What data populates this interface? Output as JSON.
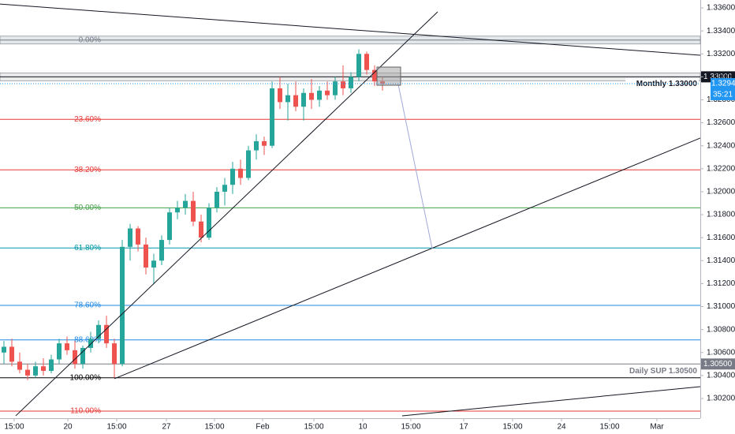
{
  "chart_data": {
    "type": "candlestick",
    "open": [
      1.306,
      1.3065,
      1.3052,
      1.3045,
      1.304,
      1.3048,
      1.3044,
      1.3054,
      1.3068,
      1.3062,
      1.305,
      1.3064,
      1.3072,
      1.3084,
      1.3068,
      1.305,
      1.3152,
      1.3168,
      1.3154,
      1.3134,
      1.314,
      1.3158,
      1.3182,
      1.3186,
      1.3192,
      1.3174,
      1.316,
      1.3186,
      1.32,
      1.3206,
      1.322,
      1.3212,
      1.3236,
      1.3244,
      1.324,
      1.329,
      1.3278,
      1.3284,
      1.3274,
      1.3286,
      1.328,
      1.3288,
      1.3284,
      1.3296,
      1.329,
      1.33,
      1.332,
      1.3306,
      1.3296
    ],
    "high": [
      1.307,
      1.3072,
      1.306,
      1.305,
      1.3052,
      1.3055,
      1.3058,
      1.3072,
      1.3074,
      1.307,
      1.3066,
      1.3078,
      1.3088,
      1.3092,
      1.3072,
      1.3158,
      1.3172,
      1.317,
      1.316,
      1.3146,
      1.3162,
      1.3186,
      1.3192,
      1.3198,
      1.32,
      1.318,
      1.319,
      1.3204,
      1.3212,
      1.3226,
      1.3228,
      1.324,
      1.325,
      1.3248,
      1.3296,
      1.33,
      1.3294,
      1.3296,
      1.329,
      1.3298,
      1.3292,
      1.3296,
      1.33,
      1.331,
      1.3304,
      1.3324,
      1.3322,
      1.331,
      1.33
    ],
    "low": [
      1.305,
      1.3048,
      1.3042,
      1.3036,
      1.3038,
      1.304,
      1.3042,
      1.305,
      1.3058,
      1.3046,
      1.3046,
      1.306,
      1.3068,
      1.3064,
      1.3038,
      1.3048,
      1.314,
      1.3148,
      1.3128,
      1.312,
      1.3136,
      1.3154,
      1.3176,
      1.318,
      1.317,
      1.3156,
      1.3158,
      1.3182,
      1.3188,
      1.3198,
      1.3206,
      1.321,
      1.3228,
      1.3232,
      1.3238,
      1.3272,
      1.3262,
      1.327,
      1.3262,
      1.3272,
      1.3274,
      1.328,
      1.328,
      1.3284,
      1.3286,
      1.3296,
      1.3302,
      1.3292,
      1.3288
    ],
    "close": [
      1.3065,
      1.3052,
      1.3045,
      1.304,
      1.3048,
      1.3044,
      1.3054,
      1.3068,
      1.3062,
      1.305,
      1.3064,
      1.3072,
      1.3084,
      1.3068,
      1.305,
      1.3152,
      1.3168,
      1.3154,
      1.3134,
      1.314,
      1.3158,
      1.3182,
      1.3186,
      1.3192,
      1.3174,
      1.316,
      1.3186,
      1.32,
      1.3206,
      1.322,
      1.3212,
      1.3236,
      1.3244,
      1.324,
      1.329,
      1.3278,
      1.3284,
      1.3274,
      1.3286,
      1.328,
      1.3288,
      1.3284,
      1.3296,
      1.329,
      1.33,
      1.332,
      1.3306,
      1.3296,
      1.3294
    ],
    "up_color": "#26a69a",
    "down_color": "#ef5350",
    "xlim": [
      -0.5,
      88.3
    ],
    "ylim": [
      1.30028,
      1.33669
    ],
    "xticks": [
      {
        "value": 1.3,
        "label": "15:00"
      },
      {
        "value": 8.1,
        "label": "20"
      },
      {
        "value": 14.3,
        "label": "15:00"
      },
      {
        "value": 20.6,
        "label": "27"
      },
      {
        "value": 26.7,
        "label": "15:00"
      },
      {
        "value": 32.8,
        "label": "Feb"
      },
      {
        "value": 39.3,
        "label": "15:00"
      },
      {
        "value": 45.5,
        "label": "10"
      },
      {
        "value": 51.6,
        "label": "15:00"
      },
      {
        "value": 58.3,
        "label": "17"
      },
      {
        "value": 64.5,
        "label": "15:00"
      },
      {
        "value": 70.7,
        "label": "24"
      },
      {
        "value": 76.8,
        "label": "15:00"
      },
      {
        "value": 82.8,
        "label": "Mar"
      }
    ],
    "yticks": [
      {
        "value": 1.336,
        "label": "1.33600"
      },
      {
        "value": 1.334,
        "label": "1.33400"
      },
      {
        "value": 1.332,
        "label": "1.33200"
      },
      {
        "value": 1.33,
        "label": "1.33000"
      },
      {
        "value": 1.328,
        "label": "1.32800"
      },
      {
        "value": 1.326,
        "label": "1.32600"
      },
      {
        "value": 1.324,
        "label": "1.32400"
      },
      {
        "value": 1.322,
        "label": "1.32200"
      },
      {
        "value": 1.32,
        "label": "1.32000"
      },
      {
        "value": 1.318,
        "label": "1.31800"
      },
      {
        "value": 1.316,
        "label": "1.31600"
      },
      {
        "value": 1.314,
        "label": "1.31400"
      },
      {
        "value": 1.312,
        "label": "1.31200"
      },
      {
        "value": 1.31,
        "label": "1.31000"
      },
      {
        "value": 1.308,
        "label": "1.30800"
      },
      {
        "value": 1.306,
        "label": "1.30600"
      },
      {
        "value": 1.304,
        "label": "1.30400"
      },
      {
        "value": 1.302,
        "label": "1.30200"
      }
    ],
    "fib_levels": [
      {
        "label": "0.00%",
        "value": 1.3332,
        "color": "#787b86"
      },
      {
        "label": "23.60%",
        "value": 1.3263,
        "color": "#e53935"
      },
      {
        "label": "38.20%",
        "value": 1.3219,
        "color": "#e53935"
      },
      {
        "label": "50.00%",
        "value": 1.3186,
        "color": "#43a047"
      },
      {
        "label": "61.80%",
        "value": 1.3151,
        "color": "#0097a7"
      },
      {
        "label": "78.60%",
        "value": 1.3101,
        "color": "#1e88e5"
      },
      {
        "label": "88.60%",
        "value": 1.3071,
        "color": "#1e88e5"
      },
      {
        "label": "100.00%",
        "value": 1.3038,
        "color": "#000000"
      },
      {
        "label": "110.00%",
        "value": 1.3009,
        "color": "#e53935"
      }
    ],
    "levels": [
      {
        "label": "Monthly 1.33000",
        "value": 1.33,
        "badge": {
          "value": 1.33,
          "label": "1.33000"
        },
        "color": "#131722"
      },
      {
        "label": "Daily SUP 1.30500",
        "value": 1.305,
        "badge": {
          "value": 1.305,
          "label": "1.30500"
        },
        "color": "#787b86"
      }
    ],
    "last_price": {
      "value": 1.32941,
      "label": "1.32941",
      "countdown": "35:21"
    },
    "trendlines": [
      {
        "x": [
          1.5,
          55
        ],
        "y": [
          1.30049,
          1.33566
        ],
        "color": "#131722"
      },
      {
        "x": [
          -0.5,
          88.3
        ],
        "y": [
          1.33634,
          1.33188
        ],
        "color": "#131722"
      },
      {
        "x": [
          14,
          88.3
        ],
        "y": [
          1.30372,
          1.32467
        ],
        "color": "#131722"
      },
      {
        "x": [
          50.5,
          88.3
        ],
        "y": [
          1.30049,
          1.30303
        ],
        "color": "#131722"
      },
      {
        "x": [
          50,
          54.3
        ],
        "y": [
          1.32934,
          1.31505
        ],
        "color": "#9fa8da"
      }
    ],
    "box": {
      "x": [
        47.3,
        50.3
      ],
      "y": [
        1.33085,
        1.32927
      ]
    }
  }
}
